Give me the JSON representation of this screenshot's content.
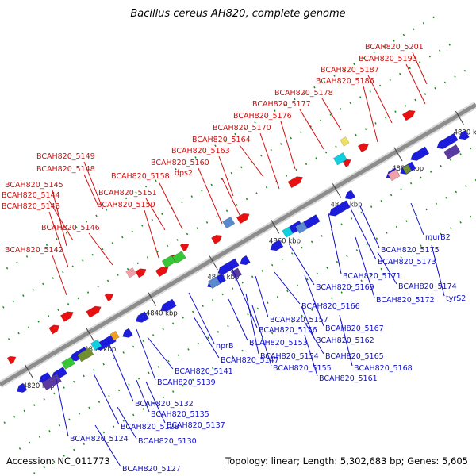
{
  "title": "Bacillus cereus AH820, complete genome",
  "accession": "Accession: NC_011773",
  "summary": "Topology: linear; Length: 5,302,683 bp; Genes: 5,605",
  "ticks": [
    "4820 kbp",
    "4830 kbp",
    "4840 kbp",
    "4850 kbp",
    "4860 kbp",
    "4870 kbp",
    "4880 kbp",
    "4890 kbp"
  ],
  "top_labels": [
    "BCAH820_5201",
    "BCAH820_5193",
    "BCAH820_5187",
    "BCAH820_5186",
    "BCAH820_5178",
    "BCAH820_5177",
    "BCAH820_5176",
    "BCAH820_5170",
    "BCAH820_5164",
    "BCAH820_5163",
    "BCAH820_5149",
    "BCAH820_5160",
    "BCAH820_5148",
    "dps2",
    "BCAH820_5158",
    "BCAH820_5145",
    "BCAH820_5151",
    "BCAH820_5144",
    "BCAH820_5150",
    "BCAH820_5143",
    "BCAH820_5146",
    "BCAH820_5142"
  ],
  "bottom_labels": [
    "murB2",
    "BCAH820_5175",
    "BCAH820_5173",
    "BCAH820_5171",
    "BCAH820_5174",
    "BCAH820_5169",
    "tyrS2",
    "BCAH820_5172",
    "BCAH820_5166",
    "BCAH820_5157",
    "BCAH820_5167",
    "BCAH820_5156",
    "BCAH820_5162",
    "BCAH820_5153",
    "nprB",
    "BCAH820_5154",
    "BCAH820_5165",
    "BCAH820_5147",
    "BCAH820_5168",
    "BCAH820_5155",
    "BCAH820_5141",
    "BCAH820_5161",
    "BCAH820_5139",
    "BCAH820_5132",
    "BCAH820_5135",
    "BCAH820_5137",
    "BCAH820_5128",
    "BCAH820_5124",
    "BCAH820_5130",
    "BCAH820_5127"
  ],
  "colors": {
    "forward": "#e81010",
    "reverse": "#1c1cdc",
    "backbone": "#8c8c8c",
    "tick": "#1a8c1a"
  }
}
